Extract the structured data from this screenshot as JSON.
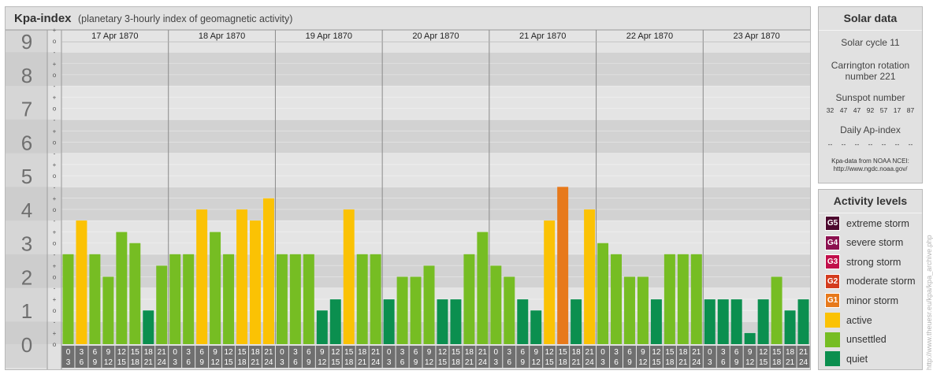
{
  "header": {
    "title": "Kpa-index",
    "subtitle": "(planetary 3-hourly index of geomagnetic activity)"
  },
  "chart_data": {
    "type": "bar",
    "title": "Kpa-index",
    "subtitle": "(planetary 3-hourly index of geomagnetic activity)",
    "y_ticks": [
      "0",
      "1",
      "2",
      "3",
      "4",
      "5",
      "6",
      "7",
      "8",
      "9"
    ],
    "y_minor_labels": [
      "+",
      "o",
      "-"
    ],
    "ylim": [
      0,
      9.33
    ],
    "days": [
      "17 Apr 1870",
      "18 Apr 1870",
      "19 Apr 1870",
      "20 Apr 1870",
      "21 Apr 1870",
      "22 Apr 1870",
      "23 Apr 1870"
    ],
    "interval_start_labels": [
      "0",
      "3",
      "6",
      "9",
      "12",
      "15",
      "18",
      "21"
    ],
    "interval_end_labels": [
      "3",
      "6",
      "9",
      "12",
      "15",
      "18",
      "21",
      "24"
    ],
    "values": [
      [
        2.67,
        3.67,
        2.67,
        2.0,
        3.33,
        3.0,
        1.0,
        2.33
      ],
      [
        2.67,
        2.67,
        4.0,
        3.33,
        2.67,
        4.0,
        3.67,
        4.33
      ],
      [
        2.67,
        2.67,
        2.67,
        1.0,
        1.33,
        4.0,
        2.67,
        2.67
      ],
      [
        1.33,
        2.0,
        2.0,
        2.33,
        1.33,
        1.33,
        2.67,
        3.33
      ],
      [
        2.33,
        2.0,
        1.33,
        1.0,
        3.67,
        4.67,
        1.33,
        4.0
      ],
      [
        3.0,
        2.67,
        2.0,
        2.0,
        1.33,
        2.67,
        2.67,
        2.67
      ],
      [
        1.33,
        1.33,
        1.33,
        0.33,
        1.33,
        2.0,
        1.0,
        1.33
      ]
    ],
    "colors": {
      "quiet": "#0b8f4f",
      "unsettled": "#76bd23",
      "active": "#fbc204",
      "minor_storm": "#e7791b",
      "moderate_storm": "#d43c1e",
      "strong_storm": "#c10f4a",
      "severe_storm": "#8c1150",
      "extreme_storm": "#4d0a2f"
    },
    "grid": true
  },
  "solar": {
    "title": "Solar data",
    "cycle": "Solar cycle 11",
    "carrington_line1": "Carrington rotation",
    "carrington_line2": "number 221",
    "sunspot_title": "Sunspot number",
    "sunspots": [
      "32",
      "47",
      "47",
      "92",
      "57",
      "17",
      "87"
    ],
    "ap_title": "Daily Ap-index",
    "ap_values": [
      "--",
      "--",
      "--",
      "--",
      "--",
      "--",
      "--"
    ],
    "source_line1": "Kpa-data from NOAA NCEI:",
    "source_line2": "http://www.ngdc.noaa.gov/"
  },
  "levels": {
    "title": "Activity levels",
    "items": [
      {
        "badge": "G5",
        "label": "extreme storm",
        "color": "#4d0a2f"
      },
      {
        "badge": "G4",
        "label": "severe storm",
        "color": "#8c1150"
      },
      {
        "badge": "G3",
        "label": "strong storm",
        "color": "#c10f4a"
      },
      {
        "badge": "G2",
        "label": "moderate storm",
        "color": "#d43c1e"
      },
      {
        "badge": "G1",
        "label": "minor storm",
        "color": "#e7791b"
      },
      {
        "badge": "",
        "label": "active",
        "color": "#fbc204"
      },
      {
        "badge": "",
        "label": "unsettled",
        "color": "#76bd23"
      },
      {
        "badge": "",
        "label": "quiet",
        "color": "#0b8f4f"
      }
    ]
  },
  "watermark": "http://www.theuesr.eu/kpa/kpa_archive.php"
}
